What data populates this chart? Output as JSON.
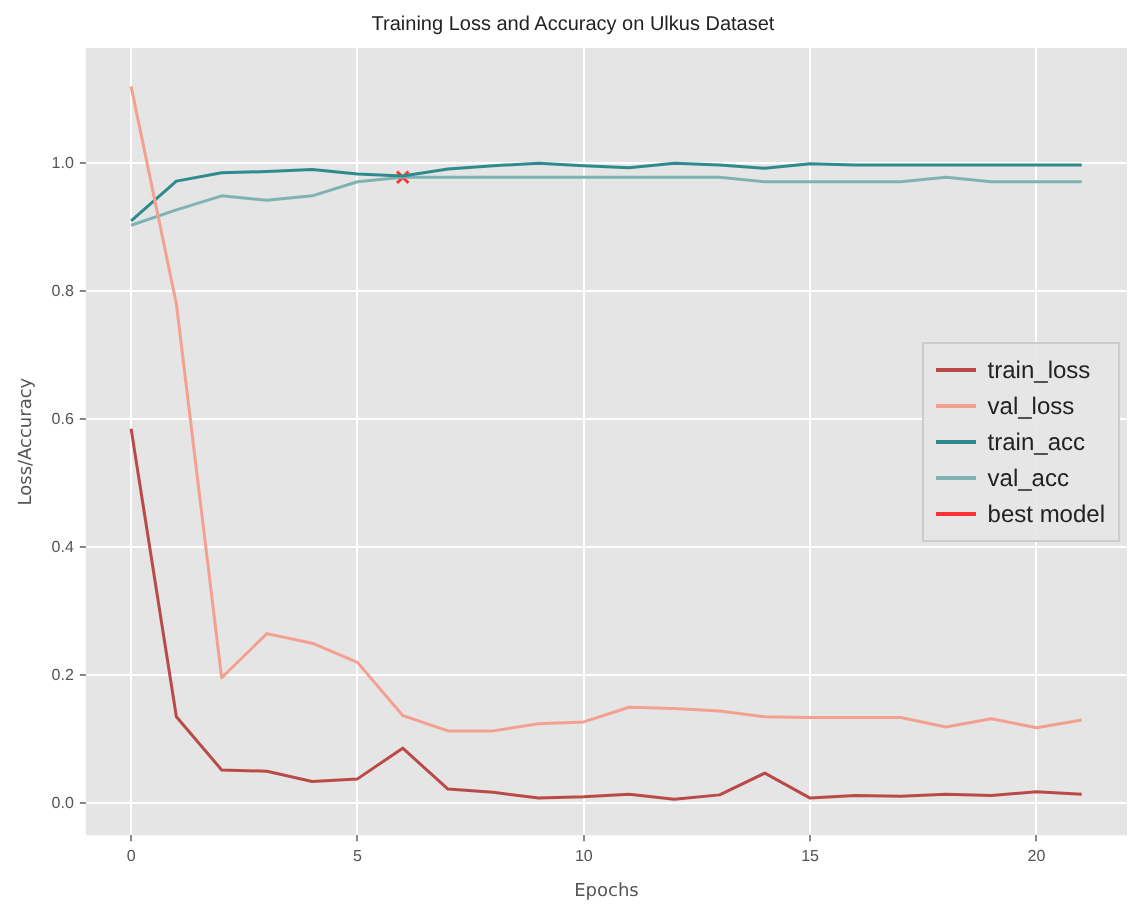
{
  "chart_data": {
    "type": "line",
    "title": "Training Loss and Accuracy on Ulkus Dataset",
    "xlabel": "Epochs",
    "ylabel": "Loss/Accuracy",
    "x": [
      0,
      1,
      2,
      3,
      4,
      5,
      6,
      7,
      8,
      9,
      10,
      11,
      12,
      13,
      14,
      15,
      16,
      17,
      18,
      19,
      20,
      21
    ],
    "series": [
      {
        "name": "train_loss",
        "color": "#b94a48",
        "values": [
          0.585,
          0.135,
          0.052,
          0.05,
          0.034,
          0.038,
          0.086,
          0.022,
          0.017,
          0.008,
          0.01,
          0.014,
          0.006,
          0.013,
          0.047,
          0.008,
          0.012,
          0.011,
          0.014,
          0.012,
          0.018,
          0.014
        ]
      },
      {
        "name": "val_loss",
        "color": "#f4a090",
        "values": [
          1.12,
          0.78,
          0.196,
          0.265,
          0.25,
          0.22,
          0.137,
          0.113,
          0.113,
          0.124,
          0.127,
          0.15,
          0.148,
          0.144,
          0.135,
          0.134,
          0.134,
          0.134,
          0.119,
          0.132,
          0.118,
          0.13
        ]
      },
      {
        "name": "train_acc",
        "color": "#2e8b8b",
        "values": [
          0.91,
          0.972,
          0.985,
          0.987,
          0.99,
          0.983,
          0.98,
          0.991,
          0.996,
          1.0,
          0.996,
          0.993,
          1.0,
          0.997,
          0.992,
          0.999,
          0.997,
          0.997,
          0.997,
          0.997,
          0.997,
          0.997
        ]
      },
      {
        "name": "val_acc",
        "color": "#7fb3b3",
        "values": [
          0.903,
          0.927,
          0.949,
          0.942,
          0.949,
          0.971,
          0.978,
          0.978,
          0.978,
          0.978,
          0.978,
          0.978,
          0.978,
          0.978,
          0.971,
          0.971,
          0.971,
          0.971,
          0.978,
          0.971,
          0.971,
          0.971
        ]
      },
      {
        "name": "best model",
        "type": "scatter",
        "marker": "cross",
        "color": "#ff3333",
        "x": [
          6
        ],
        "values": [
          0.978
        ]
      }
    ],
    "xlim": [
      -1,
      22
    ],
    "xticks": [
      0,
      5,
      10,
      15,
      20
    ],
    "ylim": [
      -0.05,
      1.18
    ],
    "yticks": [
      {
        "value": 0,
        "label": "0.0"
      },
      {
        "value": 0.2,
        "label": "0.2"
      },
      {
        "value": 0.4,
        "label": "0.4"
      },
      {
        "value": 0.6,
        "label": "0.6"
      },
      {
        "value": 0.8,
        "label": "0.8"
      },
      {
        "value": 1,
        "label": "1.0"
      }
    ],
    "grid": true,
    "legend": "right"
  }
}
